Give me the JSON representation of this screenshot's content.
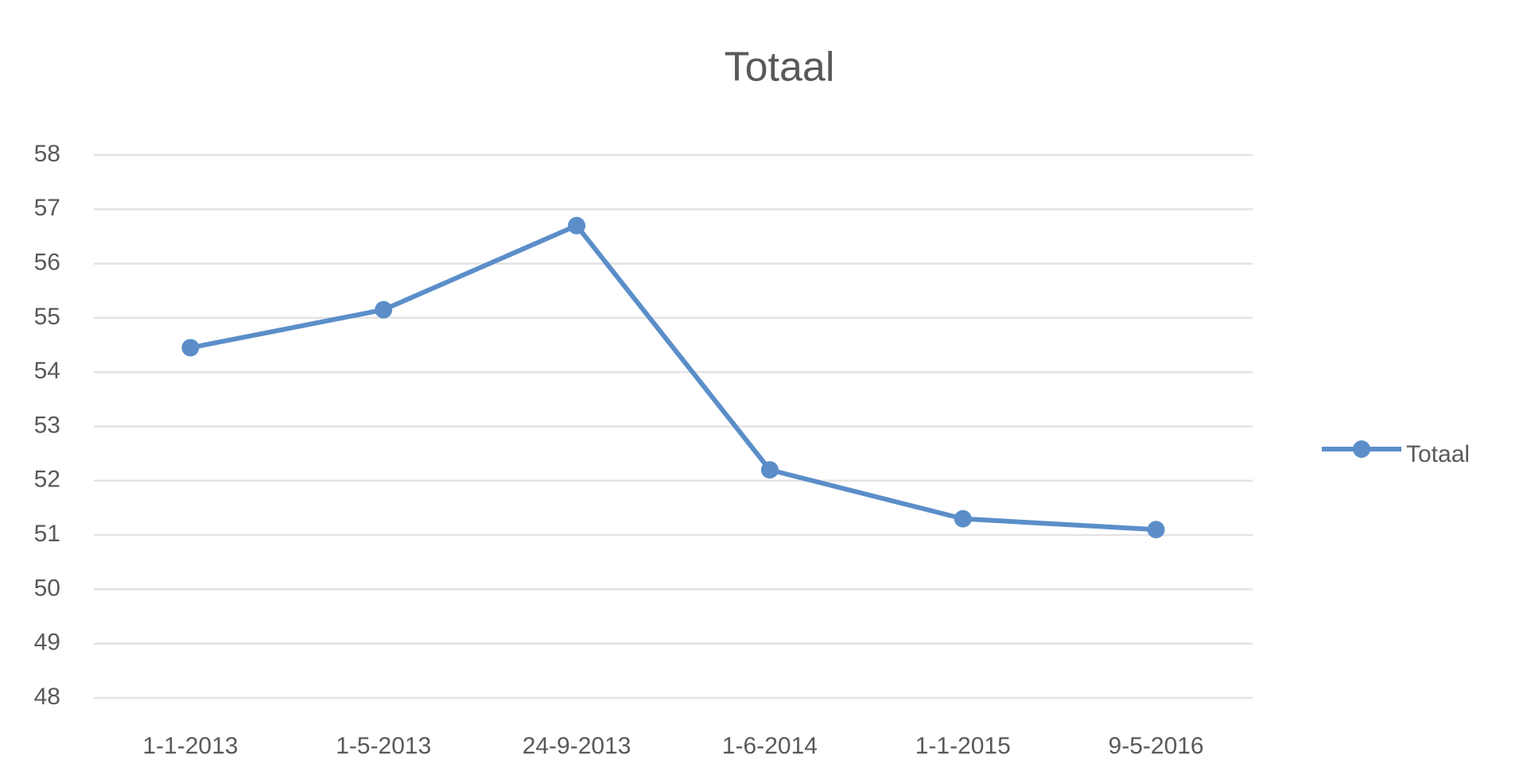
{
  "chart_data": {
    "type": "line",
    "title": "Totaal",
    "categories": [
      "1-1-2013",
      "1-5-2013",
      "24-9-2013",
      "1-6-2014",
      "1-1-2015",
      "9-5-2016"
    ],
    "series": [
      {
        "name": "Totaal",
        "color": "#5b8ec9",
        "values": [
          54.45,
          55.15,
          56.7,
          52.2,
          51.3,
          51.1
        ]
      }
    ],
    "ylim": [
      48,
      58
    ],
    "yticks": [
      48,
      49,
      50,
      51,
      52,
      53,
      54,
      55,
      56,
      57,
      58
    ],
    "grid": true,
    "legend": "right"
  }
}
